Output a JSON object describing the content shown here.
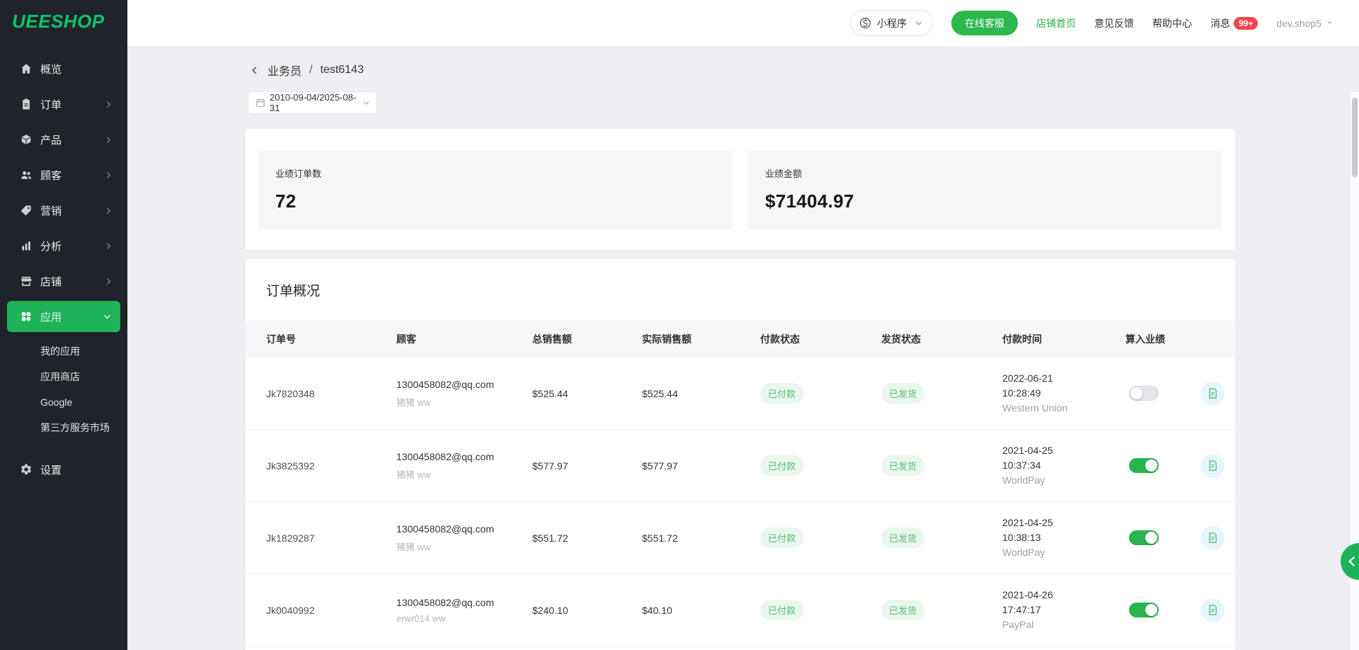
{
  "brand": {
    "name": "UEESHOP"
  },
  "colors": {
    "brand_green": "#0cc46e",
    "sidebar_bg": "#20242a",
    "active_green": "#1eb35b",
    "chat_green": "#2bb84d",
    "link_green": "#2fae49",
    "badge_red": "#f5434b",
    "status_green_text": "#55bd6e",
    "status_green_bg": "#eaf7ee",
    "toggle_on_green": "#28b44e",
    "doc_green": "#3cb96a",
    "doc_bg": "#e8f5fc"
  },
  "sidebar": {
    "items": [
      {
        "id": "overview",
        "label": "概览",
        "icon": "home-icon",
        "arrow": null,
        "active": false
      },
      {
        "id": "orders",
        "label": "订单",
        "icon": "orders-icon",
        "arrow": "right",
        "active": false
      },
      {
        "id": "products",
        "label": "产品",
        "icon": "products-icon",
        "arrow": "right",
        "active": false
      },
      {
        "id": "customers",
        "label": "顾客",
        "icon": "customers-icon",
        "arrow": "right",
        "active": false
      },
      {
        "id": "marketing",
        "label": "营销",
        "icon": "marketing-icon",
        "arrow": "right",
        "active": false
      },
      {
        "id": "analytics",
        "label": "分析",
        "icon": "analytics-icon",
        "arrow": "right",
        "active": false
      },
      {
        "id": "store",
        "label": "店铺",
        "icon": "store-icon",
        "arrow": "right",
        "active": false
      },
      {
        "id": "apps",
        "label": "应用",
        "icon": "apps-icon",
        "arrow": "down",
        "active": true
      }
    ],
    "subitems": [
      {
        "id": "my-apps",
        "label": "我的应用"
      },
      {
        "id": "app-store",
        "label": "应用商店"
      },
      {
        "id": "google",
        "label": "Google"
      },
      {
        "id": "third-party",
        "label": "第三方服务市场"
      }
    ],
    "settings": {
      "id": "settings",
      "label": "设置",
      "icon": "gear-icon"
    }
  },
  "topbar": {
    "miniprogram": "小程序",
    "livechat": "在线客服",
    "storefront": "店铺首页",
    "feedback": "意见反馈",
    "help": "帮助中心",
    "messages": "消息",
    "messages_badge": "99+",
    "account": "dev.shop5"
  },
  "page": {
    "back_label": "业务员",
    "separator": "/",
    "current": "test6143",
    "date_range": "2010-09-04/2025-08-31",
    "stats": [
      {
        "label": "业绩订单数",
        "value": "72"
      },
      {
        "label": "业绩金额",
        "value": "$71404.97"
      }
    ],
    "orders": {
      "title": "订单概况",
      "columns": [
        "订单号",
        "顾客",
        "总销售额",
        "实际销售额",
        "付款状态",
        "发货状态",
        "付款时间",
        "算入业绩"
      ],
      "rows": [
        {
          "order_no": "Jk7820348",
          "email": "1300458082@qq.com",
          "name": "猪猪 ww",
          "total": "$525.44",
          "actual": "$525.44",
          "pay_status": "已付款",
          "ship_status": "已发货",
          "date": "2022-06-21",
          "time": "10:28:49",
          "gateway": "Western Union",
          "counted": false
        },
        {
          "order_no": "Jk3825392",
          "email": "1300458082@qq.com",
          "name": "猪猪 ww",
          "total": "$577.97",
          "actual": "$577.97",
          "pay_status": "已付款",
          "ship_status": "已发货",
          "date": "2021-04-25",
          "time": "10:37:34",
          "gateway": "WorldPay",
          "counted": true
        },
        {
          "order_no": "Jk1829287",
          "email": "1300458082@qq.com",
          "name": "猪猪 ww",
          "total": "$551.72",
          "actual": "$551.72",
          "pay_status": "已付款",
          "ship_status": "已发货",
          "date": "2021-04-25",
          "time": "10:38:13",
          "gateway": "WorldPay",
          "counted": true
        },
        {
          "order_no": "Jk0040992",
          "email": "1300458082@qq.com",
          "name": "erwr014 ww",
          "total": "$240.10",
          "actual": "$40.10",
          "pay_status": "已付款",
          "ship_status": "已发货",
          "date": "2021-04-26",
          "time": "17:47:17",
          "gateway": "PayPal",
          "counted": true
        }
      ]
    }
  }
}
